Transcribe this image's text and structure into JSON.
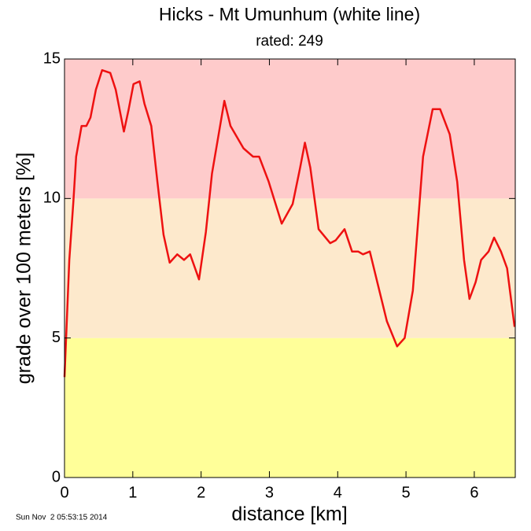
{
  "chart_data": {
    "type": "line",
    "title": "Hicks - Mt Umunhum (white line)",
    "subtitle": "rated: 249",
    "x_label": "distance [km]",
    "y_label": "grade over 100 meters [%]",
    "timestamp": "Sun Nov  2 05:53:15 2014",
    "xlim": [
      0,
      6.6
    ],
    "xticks": [
      0,
      1,
      2,
      3,
      4,
      5,
      6
    ],
    "ylim": [
      0,
      15
    ],
    "yticks": [
      0,
      5,
      10,
      15
    ],
    "bands": [
      {
        "from": 0,
        "to": 5,
        "color": "#ffff99"
      },
      {
        "from": 5,
        "to": 10,
        "color": "#fde9cc"
      },
      {
        "from": 10,
        "to": 15,
        "color": "#fecbcb"
      }
    ],
    "series": [
      {
        "color": "#ee1111",
        "x": [
          0,
          0.07,
          0.13,
          0.17,
          0.25,
          0.32,
          0.38,
          0.46,
          0.55,
          0.67,
          0.75,
          0.87,
          0.94,
          1.01,
          1.1,
          1.17,
          1.27,
          1.36,
          1.45,
          1.54,
          1.65,
          1.75,
          1.84,
          1.97,
          2.07,
          2.16,
          2.34,
          2.43,
          2.62,
          2.76,
          2.85,
          2.99,
          3.18,
          3.34,
          3.45,
          3.52,
          3.6,
          3.72,
          3.89,
          3.97,
          4.1,
          4.21,
          4.3,
          4.37,
          4.47,
          4.58,
          4.72,
          4.87,
          4.98,
          5.1,
          5.25,
          5.39,
          5.5,
          5.64,
          5.75,
          5.85,
          5.93,
          6.02,
          6.1,
          6.21,
          6.29,
          6.39,
          6.48,
          6.59
        ],
        "values": [
          3.6,
          7.8,
          9.9,
          11.5,
          12.6,
          12.6,
          12.9,
          13.9,
          14.6,
          14.5,
          13.9,
          12.4,
          13.2,
          14.1,
          14.2,
          13.4,
          12.6,
          10.6,
          8.7,
          7.7,
          8.0,
          7.8,
          8.0,
          7.1,
          8.8,
          10.9,
          13.5,
          12.6,
          11.8,
          11.5,
          11.5,
          10.6,
          9.1,
          9.8,
          11.1,
          12.0,
          11.1,
          8.9,
          8.4,
          8.5,
          8.9,
          8.1,
          8.1,
          8.0,
          8.1,
          7.0,
          5.6,
          4.7,
          5.0,
          6.7,
          11.5,
          13.2,
          13.2,
          12.3,
          10.6,
          7.8,
          6.4,
          7.0,
          7.8,
          8.1,
          8.6,
          8.1,
          7.5,
          5.4
        ]
      }
    ]
  }
}
